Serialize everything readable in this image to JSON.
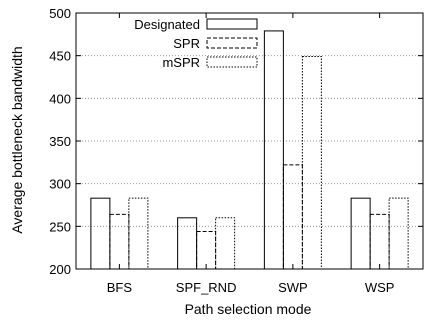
{
  "chart_data": {
    "type": "bar",
    "xlabel": "Path selection mode",
    "ylabel": "Average bottleneck bandwidth",
    "ylim": [
      200,
      500
    ],
    "yticks": [
      200,
      250,
      300,
      350,
      400,
      450,
      500
    ],
    "grid": "horizontal dotted",
    "legend_position": "top-left",
    "categories": [
      "BFS",
      "SPF_RND",
      "SWP",
      "WSP"
    ],
    "series": [
      {
        "name": "Designated",
        "values": [
          283,
          260,
          479,
          283
        ],
        "style": "solid"
      },
      {
        "name": "SPR",
        "values": [
          264,
          244,
          322,
          264
        ],
        "style": "dashed"
      },
      {
        "name": "mSPR",
        "values": [
          283,
          260,
          449,
          283
        ],
        "style": "dotted"
      }
    ]
  }
}
